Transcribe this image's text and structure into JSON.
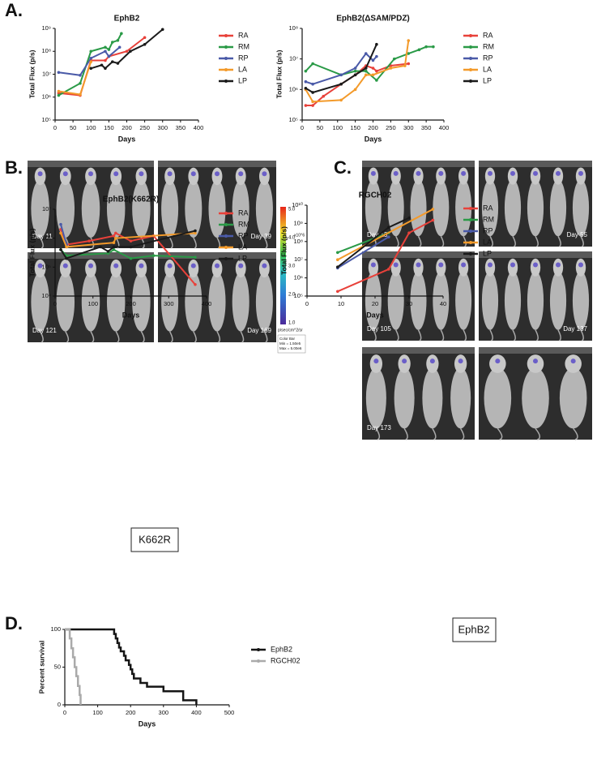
{
  "panels": [
    "A.",
    "B.",
    "C.",
    "D."
  ],
  "boxes": [
    "K662R",
    "EphB2"
  ],
  "images": {
    "B": [
      "Day 11",
      "Day 39",
      "Day 121",
      "Day 169"
    ],
    "C": [
      "Day 13",
      "Day 55",
      "Day 105",
      "Day 137",
      "Day 173"
    ],
    "colorbar": {
      "ticks": [
        "5.0",
        "4.0",
        "3.0",
        "2.0",
        "1.0"
      ],
      "scale": "x10^6",
      "unit": "p/sec/cm^2/sr",
      "title": "Color Bar",
      "min": "Min = 1.50e5",
      "max": "Max = 5.00e6"
    }
  },
  "chart_data": [
    {
      "type": "line",
      "title": "EphB2",
      "xlabel": "Days",
      "ylabel": "Total Flux (p/s)",
      "yscale": "log",
      "legend": "right",
      "xlim": [
        0,
        400
      ],
      "xticks": [
        0,
        50,
        100,
        150,
        200,
        250,
        300,
        350,
        400
      ],
      "ylim": [
        100000,
        1000000000
      ],
      "yticks": [
        {
          "value": 100000,
          "label": "10⁵"
        },
        {
          "value": 1000000,
          "label": "10⁶"
        },
        {
          "value": 10000000,
          "label": "10⁷"
        },
        {
          "value": 100000000,
          "label": "10⁸"
        },
        {
          "value": 1000000000,
          "label": "10⁹"
        }
      ],
      "series": [
        {
          "name": "RA",
          "color": "#e8413a",
          "x": [
            10,
            70,
            100,
            140,
            150,
            200,
            250
          ],
          "values": [
            1500000,
            1200000,
            40000000,
            40000000,
            60000000,
            100000000,
            400000000
          ]
        },
        {
          "name": "RM",
          "color": "#2a9a47",
          "x": [
            10,
            70,
            100,
            140,
            150,
            160,
            175,
            185
          ],
          "values": [
            1200000,
            4000000,
            100000000,
            150000000,
            120000000,
            250000000,
            300000000,
            600000000
          ]
        },
        {
          "name": "RP",
          "color": "#4a5aa8",
          "x": [
            10,
            70,
            100,
            140,
            150,
            180
          ],
          "values": [
            12000000,
            9000000,
            50000000,
            100000000,
            60000000,
            150000000
          ]
        },
        {
          "name": "LA",
          "color": "#f39a2a",
          "x": [
            10,
            70,
            100
          ],
          "values": [
            1800000,
            1300000,
            35000000
          ]
        },
        {
          "name": "LP",
          "color": "#1a1a1a",
          "x": [
            100,
            130,
            140,
            160,
            175,
            210,
            250,
            300
          ],
          "values": [
            18000000,
            25000000,
            18000000,
            35000000,
            30000000,
            100000000,
            200000000,
            900000000
          ]
        }
      ]
    },
    {
      "type": "line",
      "title": "EphB2(ΔSAM/PDZ)",
      "xlabel": "Days",
      "ylabel": "Total Flux (p/s)",
      "yscale": "log",
      "legend": "right",
      "xlim": [
        0,
        400
      ],
      "xticks": [
        0,
        50,
        100,
        150,
        200,
        250,
        300,
        350,
        400
      ],
      "ylim": [
        100000,
        100000000
      ],
      "yticks": [
        {
          "value": 100000,
          "label": "10⁵"
        },
        {
          "value": 1000000,
          "label": "10⁶"
        },
        {
          "value": 10000000,
          "label": "10⁷"
        },
        {
          "value": 100000000,
          "label": "10⁸"
        }
      ],
      "series": [
        {
          "name": "RA",
          "color": "#e8413a",
          "x": [
            10,
            30,
            60,
            110,
            150,
            180,
            200,
            210,
            250,
            300
          ],
          "values": [
            300000,
            300000,
            600000,
            1500000,
            3000000,
            6000000,
            5000000,
            4000000,
            6000000,
            7000000
          ]
        },
        {
          "name": "RM",
          "color": "#2a9a47",
          "x": [
            10,
            30,
            110,
            150,
            180,
            210,
            260,
            300,
            330,
            350,
            370
          ],
          "values": [
            4000000,
            7000000,
            3000000,
            4000000,
            4000000,
            2000000,
            10000000,
            15000000,
            20000000,
            25000000,
            25000000
          ]
        },
        {
          "name": "RP",
          "color": "#4a5aa8",
          "x": [
            10,
            30,
            110,
            150,
            180,
            200,
            210
          ],
          "values": [
            1800000,
            1500000,
            3000000,
            5000000,
            15000000,
            9000000,
            12000000
          ]
        },
        {
          "name": "LA",
          "color": "#f39a2a",
          "x": [
            10,
            30,
            110,
            150,
            180,
            200,
            250,
            290,
            300
          ],
          "values": [
            1000000,
            400000,
            450000,
            1000000,
            3000000,
            3000000,
            5000000,
            6000000,
            40000000
          ]
        },
        {
          "name": "LP",
          "color": "#1a1a1a",
          "x": [
            10,
            30,
            110,
            150,
            180,
            210
          ],
          "values": [
            1100000,
            800000,
            1500000,
            3000000,
            5000000,
            30000000
          ]
        }
      ]
    },
    {
      "type": "line",
      "title": "EphB2(K662R)",
      "xlabel": "Days",
      "ylabel": "Total Flux (p/s)",
      "yscale": "log",
      "legend": "right",
      "xlim": [
        0,
        400
      ],
      "xticks": [
        0,
        100,
        200,
        300,
        400
      ],
      "ylim": [
        10000,
        10000000
      ],
      "yticks": [
        {
          "value": 10000,
          "label": "10⁴"
        },
        {
          "value": 100000,
          "label": "10⁵"
        },
        {
          "value": 1000000,
          "label": "10⁶"
        },
        {
          "value": 10000000,
          "label": "10⁷"
        }
      ],
      "series": [
        {
          "name": "RA",
          "color": "#e8413a",
          "x": [
            15,
            30,
            90,
            155,
            160,
            200,
            260,
            370
          ],
          "values": [
            2000000,
            600000,
            800000,
            1200000,
            1500000,
            800000,
            1200000,
            25000
          ]
        },
        {
          "name": "RM",
          "color": "#2a9a47",
          "x": [
            15,
            30,
            140,
            155,
            200,
            260,
            370
          ],
          "values": [
            400000,
            250000,
            300000,
            400000,
            200000,
            250000,
            220000
          ]
        },
        {
          "name": "RP",
          "color": "#4a5aa8",
          "x": [
            15,
            30
          ],
          "values": [
            3000000,
            600000
          ]
        },
        {
          "name": "LA",
          "color": "#f39a2a",
          "x": [
            15,
            30,
            155,
            160,
            370
          ],
          "values": [
            1500000,
            500000,
            700000,
            1000000,
            1500000
          ]
        },
        {
          "name": "LP",
          "color": "#1a1a1a",
          "x": [
            15,
            30,
            120,
            140,
            155,
            200,
            370
          ],
          "values": [
            400000,
            200000,
            500000,
            350000,
            500000,
            500000,
            1800000
          ]
        }
      ]
    },
    {
      "type": "line",
      "title": "RGCH02",
      "xlabel": "Days",
      "ylabel": "Total Flux (p/s)",
      "yscale": "log",
      "legend": "right",
      "xlim": [
        0,
        40
      ],
      "xticks": [
        0,
        10,
        20,
        30,
        40
      ],
      "ylim": [
        100000,
        10000000000
      ],
      "yticks": [
        {
          "value": 100000,
          "label": "10⁵"
        },
        {
          "value": 1000000,
          "label": "10⁶"
        },
        {
          "value": 10000000,
          "label": "10⁷"
        },
        {
          "value": 100000000,
          "label": "10⁸"
        },
        {
          "value": 1000000000,
          "label": "10⁹"
        },
        {
          "value": 10000000000,
          "label": "10¹⁰"
        }
      ],
      "series": [
        {
          "name": "RA",
          "color": "#e8413a",
          "x": [
            9,
            24,
            30,
            37
          ],
          "values": [
            180000,
            3000000,
            300000000,
            1500000000
          ]
        },
        {
          "name": "RM",
          "color": "#2a9a47",
          "x": [
            9,
            24
          ],
          "values": [
            25000000,
            300000000
          ]
        },
        {
          "name": "RP",
          "color": "#4a5aa8",
          "x": [
            9,
            24
          ],
          "values": [
            3500000,
            180000000
          ]
        },
        {
          "name": "LA",
          "color": "#f39a2a",
          "x": [
            9,
            37
          ],
          "values": [
            10000000,
            6000000000
          ]
        },
        {
          "name": "LP",
          "color": "#1a1a1a",
          "x": [
            9,
            24,
            30
          ],
          "values": [
            4000000,
            600000000,
            2000000000
          ]
        }
      ]
    },
    {
      "type": "step",
      "xlabel": "Days",
      "ylabel": "Percent survival",
      "yscale": "linear",
      "legend": "right",
      "xlim": [
        0,
        500
      ],
      "xticks": [
        0,
        100,
        200,
        300,
        400,
        500
      ],
      "ylim": [
        0,
        100
      ],
      "yticks": [
        0,
        50,
        100
      ],
      "series": [
        {
          "name": "EphB2",
          "color": "#151515",
          "x": [
            0,
            150,
            155,
            160,
            165,
            170,
            180,
            185,
            195,
            200,
            205,
            210,
            230,
            250,
            300,
            360,
            400
          ],
          "values": [
            100,
            94,
            88,
            82,
            76,
            71,
            65,
            59,
            53,
            47,
            41,
            35,
            29,
            24,
            18,
            6,
            0
          ]
        },
        {
          "name": "RGCH02",
          "color": "#aaaaaa",
          "x": [
            0,
            15,
            20,
            25,
            30,
            35,
            40,
            45,
            48
          ],
          "values": [
            100,
            88,
            75,
            63,
            50,
            38,
            25,
            13,
            0
          ]
        }
      ]
    }
  ]
}
